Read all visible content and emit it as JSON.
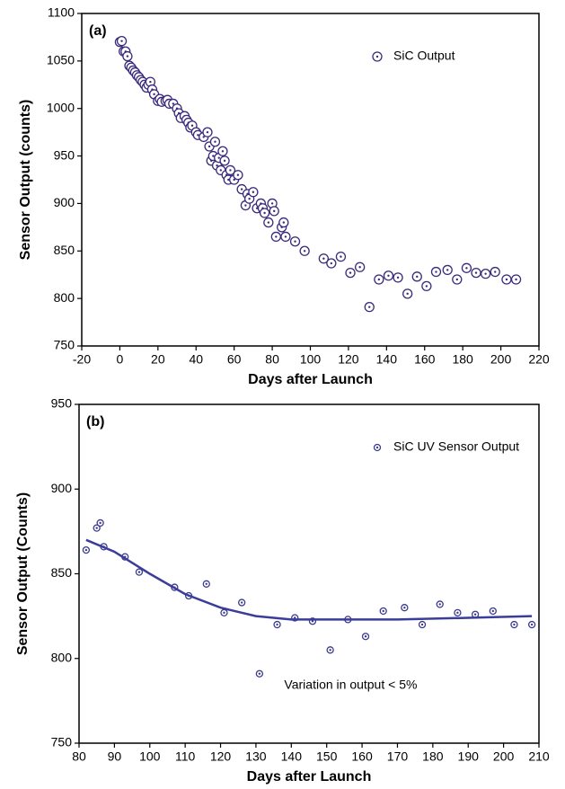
{
  "chart_data": [
    {
      "type": "scatter",
      "panel_label": "(a)",
      "xlabel": "Days after Launch",
      "ylabel": "Sensor Output (counts)",
      "xlim": [
        -20,
        220
      ],
      "xticks": [
        -20,
        0,
        20,
        40,
        60,
        80,
        100,
        120,
        140,
        160,
        180,
        200,
        220
      ],
      "ylim": [
        750,
        1100
      ],
      "yticks": [
        750,
        800,
        850,
        900,
        950,
        1000,
        1050,
        1100
      ],
      "legend": "upper right",
      "series": [
        {
          "name": "SiC Output",
          "type": "scatter",
          "color": "#3b2a7c",
          "x": [
            0,
            1,
            2,
            3,
            4,
            5,
            6,
            7,
            8,
            9,
            10,
            11,
            12,
            13,
            14,
            15,
            16,
            17,
            18,
            20,
            21,
            22,
            24,
            25,
            26,
            28,
            30,
            31,
            32,
            34,
            35,
            36,
            37,
            38,
            40,
            41,
            44,
            46,
            47,
            48,
            49,
            50,
            51,
            52,
            53,
            54,
            55,
            56,
            57,
            58,
            60,
            62,
            64,
            66,
            67,
            68,
            70,
            72,
            74,
            75,
            76,
            78,
            80,
            81,
            82,
            85,
            86,
            87,
            92,
            97,
            107,
            111,
            116,
            121,
            126,
            131,
            136,
            141,
            146,
            151,
            156,
            161,
            166,
            172,
            177,
            182,
            187,
            192,
            197,
            203,
            208
          ],
          "values": [
            1070,
            1071,
            1060,
            1060,
            1055,
            1045,
            1043,
            1040,
            1038,
            1035,
            1033,
            1030,
            1028,
            1025,
            1022,
            1025,
            1028,
            1020,
            1015,
            1008,
            1010,
            1007,
            1008,
            1009,
            1005,
            1005,
            1000,
            995,
            990,
            992,
            988,
            985,
            980,
            982,
            975,
            972,
            970,
            975,
            960,
            945,
            950,
            965,
            940,
            948,
            935,
            955,
            945,
            930,
            925,
            935,
            925,
            930,
            915,
            898,
            910,
            905,
            912,
            895,
            900,
            895,
            890,
            880,
            900,
            892,
            865,
            875,
            880,
            865,
            860,
            850,
            842,
            837,
            844,
            827,
            833,
            791,
            820,
            824,
            822,
            805,
            823,
            813,
            828,
            830,
            820,
            832,
            827,
            826,
            828,
            820,
            820
          ]
        }
      ]
    },
    {
      "type": "scatter",
      "panel_label": "(b)",
      "xlabel": "Days after Launch",
      "ylabel": "Sensor Output (Counts)",
      "annotation": "Variation in output  < 5%",
      "xlim": [
        80,
        210
      ],
      "xticks": [
        80,
        90,
        100,
        110,
        120,
        130,
        140,
        150,
        160,
        170,
        180,
        190,
        200,
        210
      ],
      "ylim": [
        750,
        950
      ],
      "yticks": [
        750,
        800,
        850,
        900,
        950
      ],
      "legend": "upper right",
      "series": [
        {
          "name": "SiC UV Sensor Output",
          "type": "scatter",
          "color": "#3b3a8c",
          "x": [
            82,
            85,
            86,
            87,
            93,
            97,
            107,
            111,
            116,
            121,
            126,
            131,
            136,
            141,
            146,
            151,
            156,
            161,
            166,
            172,
            177,
            182,
            187,
            192,
            197,
            203,
            208
          ],
          "values": [
            864,
            877,
            880,
            866,
            860,
            851,
            842,
            837,
            844,
            827,
            833,
            791,
            820,
            824,
            822,
            805,
            823,
            813,
            828,
            830,
            820,
            832,
            827,
            826,
            828,
            820,
            820
          ]
        },
        {
          "type": "line",
          "color": "#3b3d9a",
          "x": [
            82,
            90,
            100,
            110,
            120,
            130,
            140,
            150,
            170,
            190,
            208
          ],
          "values": [
            870,
            863,
            850,
            838,
            830,
            825,
            823,
            823,
            823,
            824,
            825
          ]
        }
      ]
    }
  ]
}
